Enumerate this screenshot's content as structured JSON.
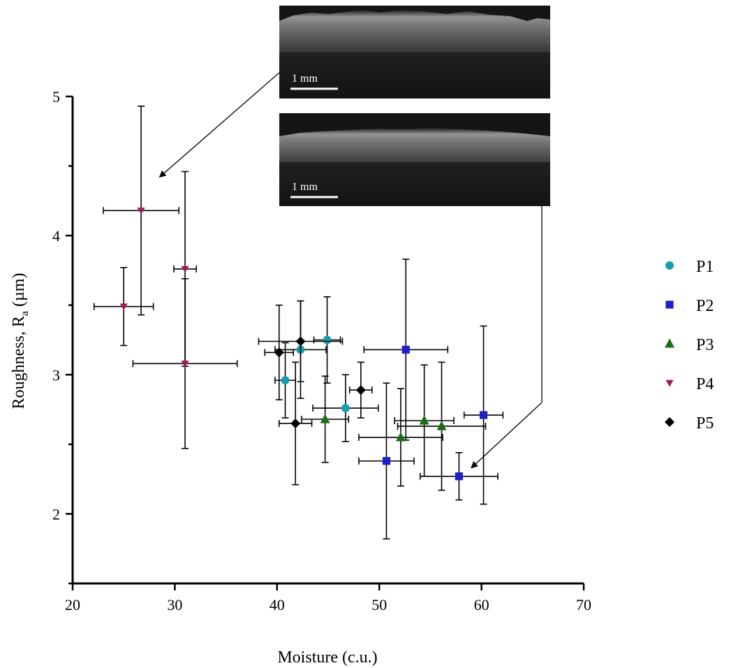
{
  "chart_data": {
    "type": "scatter",
    "title": "",
    "xlabel": "Moisture (c.u.)",
    "ylabel_main": "Roughness, R",
    "ylabel_sub": "a",
    "ylabel_unit": " (µm)",
    "xlim": [
      20,
      70
    ],
    "ylim": [
      1.5,
      5
    ],
    "x_ticks": [
      20,
      30,
      40,
      50,
      60,
      70
    ],
    "y_ticks": [
      2,
      3,
      4,
      5
    ],
    "y_minor_ticks": [
      1.5,
      2.5,
      3.5,
      4.5
    ],
    "grid": false,
    "legend_position": "right",
    "series": [
      {
        "name": "P1",
        "marker": "circle",
        "color": "#1a9cb0",
        "points": [
          {
            "x": 40.8,
            "y": 2.96,
            "xerr": 1.0,
            "yerr": 0.27
          },
          {
            "x": 42.3,
            "y": 3.18,
            "xerr": 2.5,
            "yerr": 0.35
          },
          {
            "x": 44.9,
            "y": 3.25,
            "xerr": 1.3,
            "yerr": 0.31
          },
          {
            "x": 46.7,
            "y": 2.76,
            "xerr": 3.2,
            "yerr": 0.24
          }
        ]
      },
      {
        "name": "P2",
        "marker": "square",
        "color": "#1f1fc8",
        "points": [
          {
            "x": 50.7,
            "y": 2.38,
            "xerr": 2.7,
            "yerr": 0.56
          },
          {
            "x": 52.6,
            "y": 3.18,
            "xerr": 4.1,
            "yerr": 0.65
          },
          {
            "x": 57.8,
            "y": 2.27,
            "xerr": 3.8,
            "yerr": 0.17
          },
          {
            "x": 60.2,
            "y": 2.71,
            "xerr": 1.9,
            "yerr": 0.64
          }
        ]
      },
      {
        "name": "P3",
        "marker": "triangle-up",
        "color": "#1a6e1a",
        "points": [
          {
            "x": 44.7,
            "y": 2.68,
            "xerr": 2.3,
            "yerr": 0.31
          },
          {
            "x": 52.1,
            "y": 2.55,
            "xerr": 4.1,
            "yerr": 0.35
          },
          {
            "x": 54.4,
            "y": 2.67,
            "xerr": 2.9,
            "yerr": 0.4
          },
          {
            "x": 56.1,
            "y": 2.63,
            "xerr": 4.3,
            "yerr": 0.46
          }
        ]
      },
      {
        "name": "P4",
        "marker": "triangle-down",
        "color": "#9b1f55",
        "points": [
          {
            "x": 25.0,
            "y": 3.49,
            "xerr": 2.9,
            "yerr": 0.28
          },
          {
            "x": 26.7,
            "y": 4.18,
            "xerr": 3.7,
            "yerr": 0.75
          },
          {
            "x": 31.0,
            "y": 3.76,
            "xerr": 1.1,
            "yerr": 0.7
          },
          {
            "x": 31.0,
            "y": 3.08,
            "xerr": 5.1,
            "yerr": 0.61
          }
        ]
      },
      {
        "name": "P5",
        "marker": "diamond",
        "color": "#000000",
        "points": [
          {
            "x": 40.2,
            "y": 3.16,
            "xerr": 1.4,
            "yerr": 0.34
          },
          {
            "x": 41.8,
            "y": 2.65,
            "xerr": 1.6,
            "yerr": 0.44
          },
          {
            "x": 42.3,
            "y": 3.24,
            "xerr": 4.1,
            "yerr": 0.29
          },
          {
            "x": 48.2,
            "y": 2.89,
            "xerr": 1.1,
            "yerr": 0.2
          }
        ]
      }
    ],
    "annotations": [
      {
        "label": "1 mm",
        "inset": "top",
        "points_to": {
          "x": 28.5,
          "y": 4.42
        }
      },
      {
        "label": "1 mm",
        "inset": "bottom",
        "points_to": {
          "x": 59.0,
          "y": 2.33
        }
      }
    ]
  }
}
